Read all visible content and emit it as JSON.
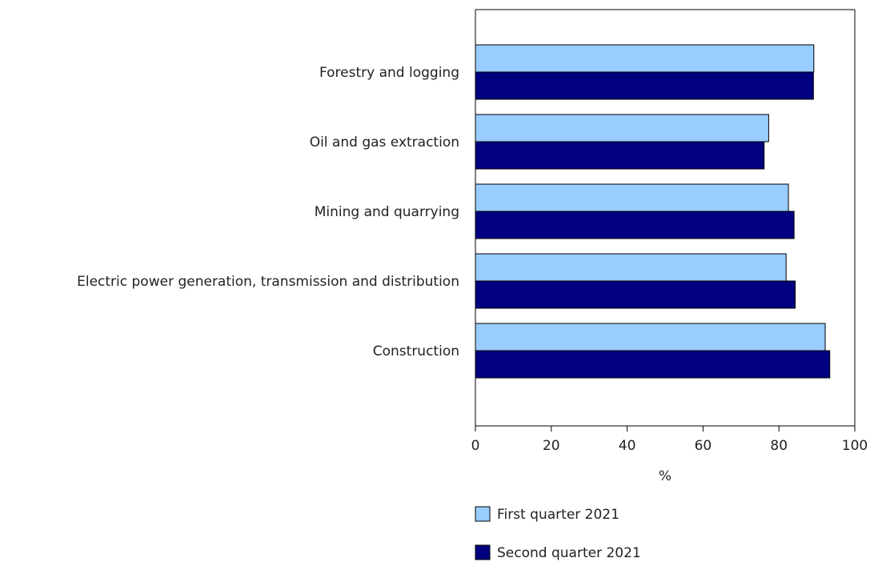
{
  "chart_data": {
    "type": "bar",
    "orientation": "horizontal",
    "categories": [
      "Forestry and logging",
      "Oil and gas extraction",
      "Mining and quarrying",
      "Electric power generation, transmission and distribution",
      "Construction"
    ],
    "series": [
      {
        "name": "First quarter 2021",
        "color": "#99ccff",
        "values": [
          89.2,
          77.3,
          82.5,
          81.9,
          92.2
        ]
      },
      {
        "name": "Second quarter 2021",
        "color": "#000080",
        "values": [
          89.1,
          76.1,
          84.0,
          84.3,
          93.4
        ]
      }
    ],
    "xlabel": "%",
    "xlim": [
      0,
      100
    ],
    "xticks": [
      "0",
      "20",
      "40",
      "60",
      "80",
      "100"
    ],
    "grid": false,
    "legend_position": "bottom"
  }
}
